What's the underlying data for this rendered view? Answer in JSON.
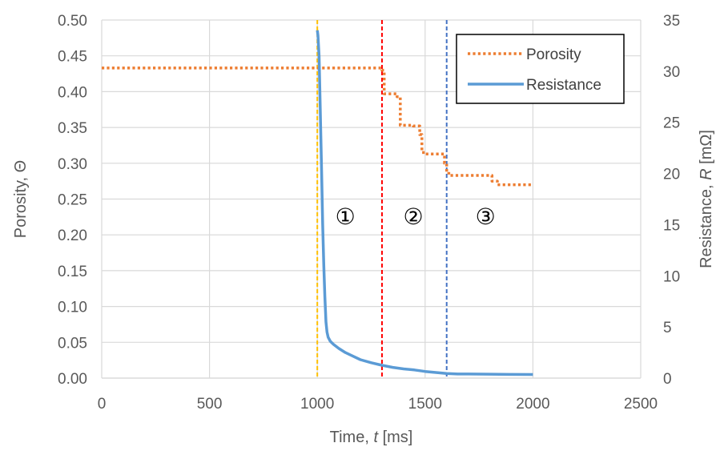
{
  "chart_data": {
    "type": "line",
    "x_axis": {
      "label_prefix": "Time, ",
      "label_symbol": "t",
      "label_unit": " [ms]",
      "range": [
        0,
        2500
      ],
      "ticks": [
        "0",
        "500",
        "1000",
        "1500",
        "2000",
        "2500"
      ]
    },
    "y_left": {
      "label_prefix": "Porosity, ",
      "label_symbol": "Θ",
      "range": [
        0,
        0.5
      ],
      "ticks": [
        "0.00",
        "0.05",
        "0.10",
        "0.15",
        "0.20",
        "0.25",
        "0.30",
        "0.35",
        "0.40",
        "0.45",
        "0.50"
      ]
    },
    "y_right": {
      "label_prefix": "Resistance, ",
      "label_symbol": "R",
      "label_unit": " [mΩ]",
      "range": [
        0,
        35
      ],
      "ticks": [
        "0",
        "5",
        "10",
        "15",
        "20",
        "25",
        "30",
        "35"
      ]
    },
    "grid": true,
    "legend_position": "top-right",
    "series": [
      {
        "name": "Porosity",
        "axis": "left",
        "color": "#ED7D31",
        "style": "dotted",
        "x": [
          0,
          1300,
          1300,
          1310,
          1310,
          1370,
          1370,
          1385,
          1385,
          1445,
          1445,
          1475,
          1475,
          1485,
          1485,
          1500,
          1500,
          1590,
          1590,
          1600,
          1600,
          1610,
          1610,
          1810,
          1810,
          1835,
          1835,
          2000
        ],
        "y": [
          0.433,
          0.433,
          0.43,
          0.43,
          0.397,
          0.397,
          0.393,
          0.393,
          0.353,
          0.353,
          0.352,
          0.352,
          0.34,
          0.34,
          0.315,
          0.315,
          0.313,
          0.313,
          0.3,
          0.3,
          0.288,
          0.288,
          0.283,
          0.283,
          0.275,
          0.275,
          0.27,
          0.27
        ]
      },
      {
        "name": "Resistance",
        "axis": "right",
        "color": "#5B9BD5",
        "style": "solid",
        "x": [
          1000,
          1003,
          1008,
          1012,
          1016,
          1020,
          1025,
          1030,
          1035,
          1040,
          1045,
          1050,
          1060,
          1075,
          1100,
          1130,
          1160,
          1200,
          1250,
          1300,
          1350,
          1400,
          1450,
          1500,
          1550,
          1600,
          1650,
          1700,
          1800,
          1900,
          2000
        ],
        "y": [
          34,
          33.5,
          31.5,
          28,
          24,
          20,
          15,
          11,
          8,
          5.5,
          4.5,
          4,
          3.6,
          3.3,
          2.9,
          2.5,
          2.2,
          1.8,
          1.5,
          1.25,
          1.05,
          0.9,
          0.8,
          0.65,
          0.55,
          0.45,
          0.4,
          0.4,
          0.38,
          0.36,
          0.35
        ]
      }
    ],
    "vertical_markers": [
      {
        "x": 1000,
        "color": "#FFC000"
      },
      {
        "x": 1300,
        "color": "#FF0000"
      },
      {
        "x": 1600,
        "color": "#4472C4"
      }
    ],
    "annotations": [
      {
        "text": "①",
        "x": 1130,
        "y": 0.215
      },
      {
        "text": "②",
        "x": 1445,
        "y": 0.215
      },
      {
        "text": "③",
        "x": 1780,
        "y": 0.215
      }
    ]
  }
}
